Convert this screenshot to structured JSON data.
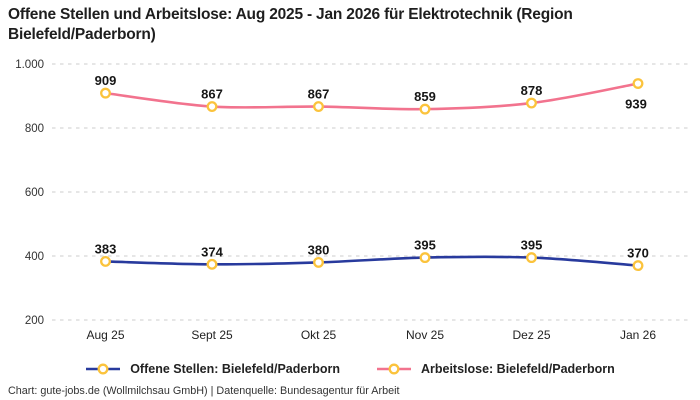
{
  "title_lines": [
    "Offene Stellen und Arbeitslose: Aug 2025 - Jan 2026 für Elektrotechnik (Region",
    "Bielefeld/Paderborn)"
  ],
  "footer": "Chart: gute-jobs.de (Wollmilchsau GmbH) | Datenquelle: Bundesagentur für Arbeit",
  "colors": {
    "offene_stellen_line": "#283a9d",
    "arbeitslose_line": "#f2738e",
    "marker_ring": "#fbc33c",
    "grid": "#cccccc"
  },
  "chart_data": {
    "type": "line",
    "title": "Offene Stellen und Arbeitslose: Aug 2025 - Jan 2026 für Elektrotechnik (Region Bielefeld/Paderborn)",
    "categories": [
      "Aug 25",
      "Sept 25",
      "Okt 25",
      "Nov 25",
      "Dez 25",
      "Jan 26"
    ],
    "series": [
      {
        "name": "Offene Stellen: Bielefeld/Paderborn",
        "values": [
          383,
          374,
          380,
          395,
          395,
          370
        ],
        "color": "#283a9d"
      },
      {
        "name": "Arbeitslose: Bielefeld/Paderborn",
        "values": [
          909,
          867,
          867,
          859,
          878,
          939
        ],
        "color": "#f2738e"
      }
    ],
    "y_ticks": [
      {
        "label": "1.000",
        "value": 1000
      },
      {
        "label": "800",
        "value": 800
      },
      {
        "label": "600",
        "value": 600
      },
      {
        "label": "400",
        "value": 400
      },
      {
        "label": "200",
        "value": 200
      }
    ],
    "ylim": [
      200,
      1000
    ],
    "xlabel": "",
    "ylabel": "",
    "grid": "horizontal-dashed",
    "legend_position": "bottom",
    "marker": "ring",
    "marker_color": "#fbc33c"
  }
}
